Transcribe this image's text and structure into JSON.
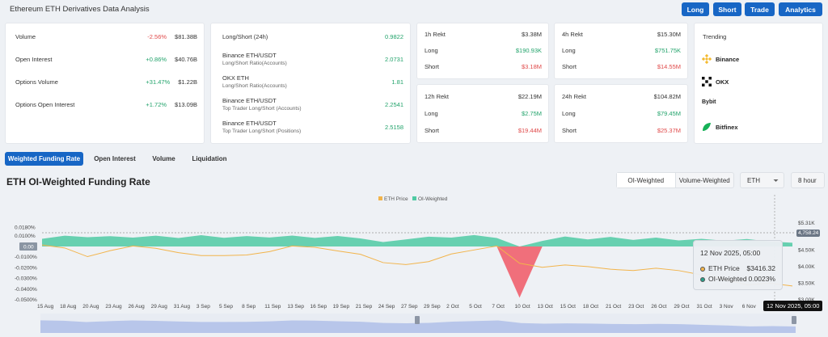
{
  "header": {
    "title": "Ethereum ETH Derivatives Data Analysis",
    "buttons": [
      "Long",
      "Short",
      "Trade",
      "Analytics"
    ]
  },
  "overview": {
    "rows": [
      {
        "label": "Volume",
        "change": "-2.56%",
        "value": "$81.38B",
        "dir": "down"
      },
      {
        "label": "Open Interest",
        "change": "+0.86%",
        "value": "$40.76B",
        "dir": "up"
      },
      {
        "label": "Options Volume",
        "change": "+31.47%",
        "value": "$1.22B",
        "dir": "up"
      },
      {
        "label": "Options Open Interest",
        "change": "+1.72%",
        "value": "$13.09B",
        "dir": "up"
      }
    ]
  },
  "long_short": {
    "items": [
      {
        "title": "Long/Short (24h)",
        "sub": "",
        "value": "0.9822"
      },
      {
        "title": "Binance ETH/USDT",
        "sub": "Long/Short Ratio(Accounts)",
        "value": "2.0731"
      },
      {
        "title": "OKX ETH",
        "sub": "Long/Short Ratio(Accounts)",
        "value": "1.81"
      },
      {
        "title": "Binance ETH/USDT",
        "sub": "Top Trader Long/Short (Accounts)",
        "value": "2.2541"
      },
      {
        "title": "Binance ETH/USDT",
        "sub": "Top Trader Long/Short (Positions)",
        "value": "2.5158"
      }
    ]
  },
  "rekt": [
    {
      "period": "1h Rekt",
      "total": "$3.38M",
      "long": "$190.93K",
      "short": "$3.18M"
    },
    {
      "period": "4h Rekt",
      "total": "$15.30M",
      "long": "$751.75K",
      "short": "$14.55M"
    },
    {
      "period": "12h Rekt",
      "total": "$22.19M",
      "long": "$2.75M",
      "short": "$19.44M"
    },
    {
      "period": "24h Rekt",
      "total": "$104.82M",
      "long": "$79.45M",
      "short": "$25.37M"
    }
  ],
  "rekt_labels": {
    "long": "Long",
    "short": "Short"
  },
  "trending": {
    "title": "Trending",
    "items": [
      {
        "name": "Binance",
        "icon": "binance-icon",
        "color": "#f3ba2f"
      },
      {
        "name": "OKX",
        "icon": "okx-icon",
        "color": "#111111"
      },
      {
        "name": "Bybit",
        "icon": "bybit-icon",
        "color": "#111111"
      },
      {
        "name": "Bitfinex",
        "icon": "bitfinex-icon",
        "color": "#16b157"
      }
    ]
  },
  "tabs": [
    "Weighted Funding Rate",
    "Open Interest",
    "Volume",
    "Liquidation"
  ],
  "section": {
    "title": "ETH OI-Weighted Funding Rate",
    "toggle": [
      "OI-Weighted",
      "Volume-Weighted"
    ],
    "coin": "ETH",
    "interval": "8 hour"
  },
  "tooltip": {
    "date": "12 Nov 2025, 05:00",
    "rows": [
      {
        "name": "ETH Price",
        "value": "$3416.32",
        "color": "#f2b44b"
      },
      {
        "name": "OI-Weighted",
        "value": "0.0023%",
        "color": "#2b9e8a"
      }
    ]
  },
  "crosshair": {
    "x_label": "12 Nov 2025, 05:00",
    "y_label": "4,758.24"
  },
  "colors": {
    "accent": "#1766c5",
    "up": "#22a36b",
    "down": "#e04a4a",
    "funding_pos": "#4fcaa3",
    "funding_neg": "#f0606e",
    "price": "#f2b44b"
  },
  "chart_data": {
    "type": "area",
    "legend": [
      "ETH Price",
      "OI-Weighted"
    ],
    "legend_position": "top-center",
    "grid": false,
    "y_left_ticks": [
      "0.0180%",
      "0.0100%",
      "0.00",
      "-0.0100%",
      "-0.0200%",
      "-0.0300%",
      "-0.0400%",
      "-0.0500%"
    ],
    "y_right_ticks": [
      "$5.31K",
      "$5.00K",
      "$4.50K",
      "$4.00K",
      "$3.50K",
      "$3.00K"
    ],
    "ylim_left": [
      -0.05,
      0.022
    ],
    "ylim_right": [
      3000,
      5310
    ],
    "x_ticks": [
      "15 Aug",
      "18 Aug",
      "20 Aug",
      "23 Aug",
      "26 Aug",
      "29 Aug",
      "31 Aug",
      "3 Sep",
      "5 Sep",
      "8 Sep",
      "11 Sep",
      "13 Sep",
      "16 Sep",
      "19 Sep",
      "21 Sep",
      "24 Sep",
      "27 Sep",
      "29 Sep",
      "2 Oct",
      "5 Oct",
      "7 Oct",
      "10 Oct",
      "13 Oct",
      "15 Oct",
      "18 Oct",
      "21 Oct",
      "23 Oct",
      "26 Oct",
      "29 Oct",
      "31 Oct",
      "3 Nov",
      "6 Nov",
      "8 Nov"
    ],
    "series": [
      {
        "name": "OI-Weighted",
        "unit": "%",
        "values": [
          0.008,
          0.009,
          0.0095,
          0.0085,
          0.0092,
          0.009,
          0.0088,
          0.0094,
          0.009,
          0.0086,
          0.0093,
          0.0091,
          0.0089,
          0.0087,
          0.0084,
          0.003,
          0.0075,
          0.008,
          0.0092,
          0.0095,
          0.0088,
          -0.048,
          0.006,
          0.0082,
          0.0075,
          0.0078,
          0.007,
          0.0072,
          0.0065,
          0.006,
          0.0062,
          0.0058,
          0.0055,
          0.0023
        ]
      },
      {
        "name": "ETH Price",
        "unit": "$",
        "values": [
          4650,
          4560,
          4300,
          4480,
          4620,
          4550,
          4420,
          4330,
          4330,
          4350,
          4450,
          4620,
          4580,
          4470,
          4370,
          4120,
          4060,
          4150,
          4380,
          4500,
          4620,
          4100,
          3980,
          4050,
          4000,
          3920,
          3880,
          3950,
          3880,
          3750,
          3620,
          3450,
          3500,
          3416
        ]
      }
    ]
  }
}
